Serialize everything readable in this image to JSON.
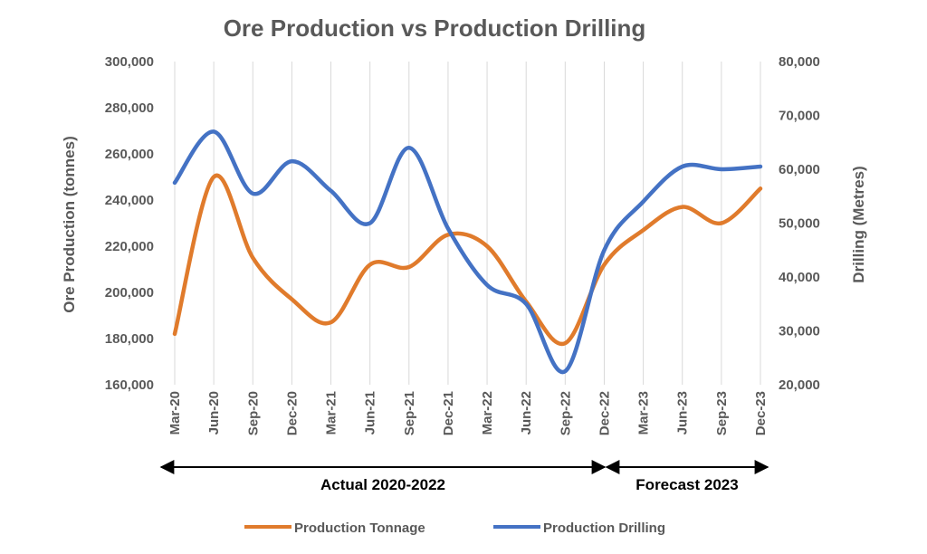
{
  "chart_data": {
    "type": "line",
    "title": "Ore Production vs Production Drilling",
    "categories": [
      "Mar-20",
      "Jun-20",
      "Sep-20",
      "Dec-20",
      "Mar-21",
      "Jun-21",
      "Sep-21",
      "Dec-21",
      "Mar-22",
      "Jun-22",
      "Sep-22",
      "Dec-22",
      "Mar-23",
      "Jun-23",
      "Sep-23",
      "Dec-23"
    ],
    "y_left": {
      "label": "Ore Production (tonnes)",
      "min": 160000,
      "max": 300000,
      "ticks": [
        "160,000",
        "180,000",
        "200,000",
        "220,000",
        "240,000",
        "260,000",
        "280,000",
        "300,000"
      ]
    },
    "y_right": {
      "label": "Drilling (Metres)",
      "min": 20000,
      "max": 80000,
      "ticks": [
        "20,000",
        "30,000",
        "40,000",
        "50,000",
        "60,000",
        "70,000",
        "80,000"
      ]
    },
    "series": [
      {
        "name": "Production Tonnage",
        "axis": "left",
        "color": "#e07b2c",
        "values": [
          182000,
          250000,
          215000,
          197000,
          187000,
          212000,
          211000,
          225000,
          220000,
          196000,
          178000,
          212000,
          227000,
          237000,
          230000,
          245000
        ]
      },
      {
        "name": "Production Drilling",
        "axis": "right",
        "color": "#4472c4",
        "values": [
          57500,
          67000,
          55500,
          61500,
          56000,
          50000,
          64000,
          49000,
          38500,
          35000,
          22500,
          45000,
          54000,
          60500,
          60000,
          60500
        ]
      }
    ],
    "periods": [
      {
        "label": "Actual 2020-2022",
        "start": 0,
        "end": 11
      },
      {
        "label": "Forecast 2023",
        "start": 11,
        "end": 15
      }
    ],
    "grid": "vertical",
    "legend_position": "bottom"
  }
}
